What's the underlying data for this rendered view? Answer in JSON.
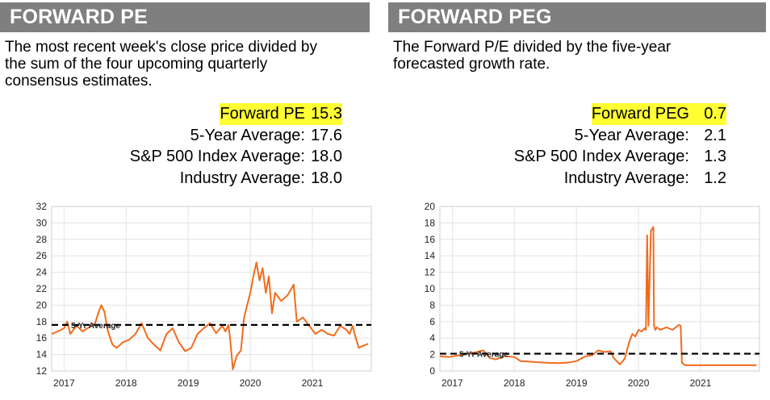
{
  "panels": [
    {
      "title": "FORWARD PE",
      "description": "The most recent week's close price divided by\nthe sum of the four upcoming quarterly\nconsensus estimates.",
      "stats": [
        {
          "label": "Forward PE",
          "value": "15.3",
          "highlight": true
        },
        {
          "label": "5-Year Average:",
          "value": "17.6",
          "highlight": false
        },
        {
          "label": "S&P 500 Index Average:",
          "value": "18.0",
          "highlight": false
        },
        {
          "label": "Industry Average:",
          "value": "18.0",
          "highlight": false
        }
      ]
    },
    {
      "title": "FORWARD PEG",
      "description": "The Forward P/E divided by the five-year\nforecasted growth rate.",
      "stats": [
        {
          "label": "Forward PEG",
          "value": "0.7",
          "highlight": true
        },
        {
          "label": "5-Year Average:",
          "value": "2.1",
          "highlight": false
        },
        {
          "label": "S&P 500 Index Average:",
          "value": "1.3",
          "highlight": false
        },
        {
          "label": "Industry Average:",
          "value": "1.2",
          "highlight": false
        }
      ]
    }
  ],
  "chart_data": [
    {
      "type": "line",
      "title": "",
      "xlabel": "",
      "ylabel": "",
      "xlim": [
        2016.8,
        2021.95
      ],
      "ylim": [
        12,
        32
      ],
      "yticks": [
        12,
        14,
        16,
        18,
        20,
        22,
        24,
        26,
        28,
        30,
        32
      ],
      "xticks": [
        2017,
        2018,
        2019,
        2020,
        2021
      ],
      "grid": true,
      "line_color": "#f26b1d",
      "reference_line": {
        "label": "5-Yr Average",
        "value": 17.6
      },
      "series": [
        {
          "x": [
            2016.8,
            2016.9,
            2017.0,
            2017.05,
            2017.1,
            2017.2,
            2017.3,
            2017.4,
            2017.5,
            2017.55,
            2017.6,
            2017.65,
            2017.7,
            2017.78,
            2017.85,
            2017.95,
            2018.05,
            2018.15,
            2018.25,
            2018.35,
            2018.45,
            2018.55,
            2018.65,
            2018.75,
            2018.85,
            2018.95,
            2019.05,
            2019.15,
            2019.25,
            2019.35,
            2019.45,
            2019.55,
            2019.6,
            2019.65,
            2019.68,
            2019.72,
            2019.78,
            2019.85,
            2019.9,
            2020.0,
            2020.05,
            2020.1,
            2020.15,
            2020.2,
            2020.25,
            2020.3,
            2020.35,
            2020.4,
            2020.5,
            2020.6,
            2020.7,
            2020.75,
            2020.85,
            2020.95,
            2021.05,
            2021.15,
            2021.25,
            2021.35,
            2021.45,
            2021.55,
            2021.6,
            2021.65,
            2021.7,
            2021.75,
            2021.8,
            2021.9
          ],
          "values": [
            16.5,
            16.8,
            17.2,
            18.0,
            16.5,
            17.5,
            16.8,
            17.3,
            17.8,
            19.0,
            20.0,
            19.2,
            17.0,
            15.2,
            14.8,
            15.5,
            15.8,
            16.5,
            17.8,
            16.0,
            15.2,
            14.5,
            16.5,
            17.2,
            15.5,
            14.4,
            14.8,
            16.5,
            17.2,
            17.8,
            16.6,
            17.5,
            16.8,
            17.6,
            15.5,
            12.2,
            13.8,
            14.5,
            18.5,
            21.5,
            23.5,
            25.2,
            23.0,
            24.5,
            21.5,
            23.5,
            19.0,
            21.5,
            20.5,
            21.2,
            22.5,
            18.0,
            18.5,
            17.5,
            16.5,
            17.0,
            16.5,
            16.3,
            17.5,
            17.0,
            16.5,
            17.5,
            16.0,
            14.8,
            15.0,
            15.3
          ]
        }
      ]
    },
    {
      "type": "line",
      "title": "",
      "xlabel": "",
      "ylabel": "",
      "xlim": [
        2016.8,
        2021.95
      ],
      "ylim": [
        0,
        20
      ],
      "yticks": [
        0,
        2,
        4,
        6,
        8,
        10,
        12,
        14,
        16,
        18,
        20
      ],
      "xticks": [
        2017,
        2018,
        2019,
        2020,
        2021
      ],
      "grid": true,
      "line_color": "#f26b1d",
      "reference_line": {
        "label": "5-Yr Average",
        "value": 2.1
      },
      "series": [
        {
          "x": [
            2016.8,
            2016.95,
            2017.1,
            2017.25,
            2017.4,
            2017.5,
            2017.6,
            2017.7,
            2017.85,
            2018.0,
            2018.1,
            2018.3,
            2018.5,
            2018.7,
            2018.85,
            2019.0,
            2019.15,
            2019.25,
            2019.35,
            2019.45,
            2019.55,
            2019.6,
            2019.65,
            2019.7,
            2019.78,
            2019.85,
            2019.9,
            2019.95,
            2020.0,
            2020.05,
            2020.1,
            2020.12,
            2020.14,
            2020.16,
            2020.2,
            2020.24,
            2020.25,
            2020.27,
            2020.3,
            2020.35,
            2020.45,
            2020.55,
            2020.65,
            2020.68,
            2020.7,
            2020.75,
            2021.0,
            2021.3,
            2021.6,
            2021.9
          ],
          "values": [
            1.8,
            1.7,
            1.9,
            2.1,
            2.3,
            2.5,
            1.6,
            1.4,
            1.8,
            1.7,
            1.2,
            1.1,
            1.0,
            0.95,
            1.0,
            1.2,
            1.8,
            1.9,
            2.5,
            2.3,
            2.4,
            1.6,
            1.2,
            0.8,
            1.5,
            3.5,
            4.5,
            4.2,
            5.0,
            4.8,
            5.2,
            5.0,
            16.5,
            5.5,
            17.0,
            17.5,
            5.5,
            5.0,
            5.3,
            5.0,
            5.3,
            5.0,
            5.6,
            5.5,
            1.0,
            0.7,
            0.7,
            0.7,
            0.7,
            0.7
          ]
        }
      ]
    }
  ]
}
